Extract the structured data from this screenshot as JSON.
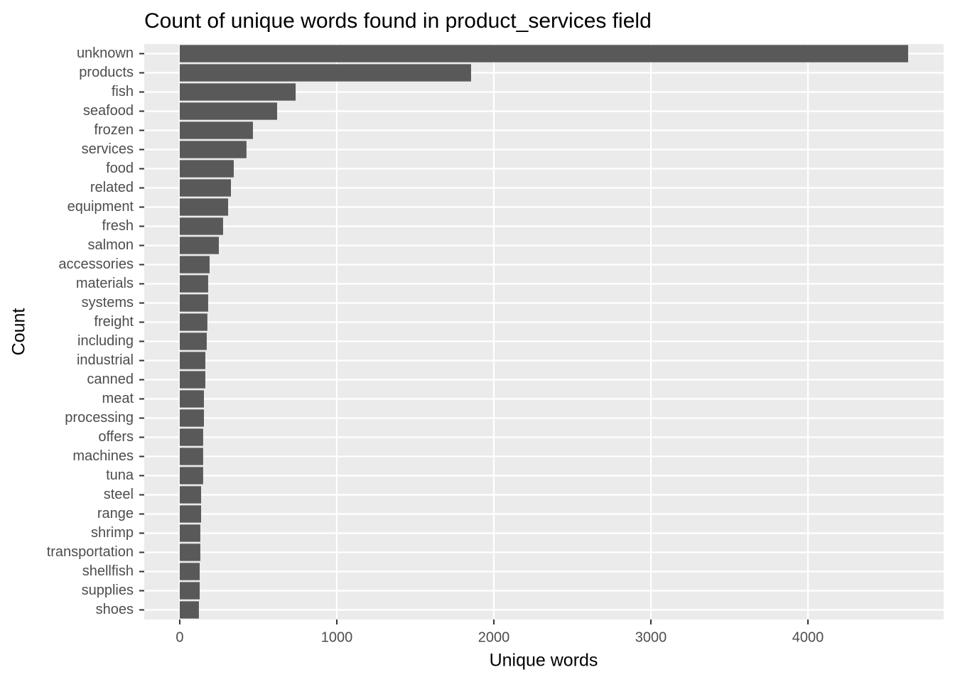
{
  "chart_data": {
    "type": "bar",
    "orientation": "horizontal",
    "title": "Count of unique words found in product_services field",
    "x_label": "Unique words",
    "y_label": "Count",
    "categories": [
      "unknown",
      "products",
      "fish",
      "seafood",
      "frozen",
      "services",
      "food",
      "related",
      "equipment",
      "fresh",
      "salmon",
      "accessories",
      "materials",
      "systems",
      "freight",
      "including",
      "industrial",
      "canned",
      "meat",
      "processing",
      "offers",
      "machines",
      "tuna",
      "steel",
      "range",
      "shrimp",
      "transportation",
      "shellfish",
      "supplies",
      "shoes"
    ],
    "values": [
      4638,
      1855,
      738,
      620,
      466,
      425,
      344,
      326,
      308,
      276,
      249,
      190,
      181,
      181,
      176,
      172,
      163,
      163,
      154,
      154,
      149,
      149,
      149,
      136,
      136,
      131,
      131,
      127,
      127,
      122
    ],
    "color": "#595959",
    "xlim": [
      -226,
      4864
    ],
    "xticks": [
      0,
      1000,
      2000,
      3000,
      4000
    ],
    "grid": true
  }
}
